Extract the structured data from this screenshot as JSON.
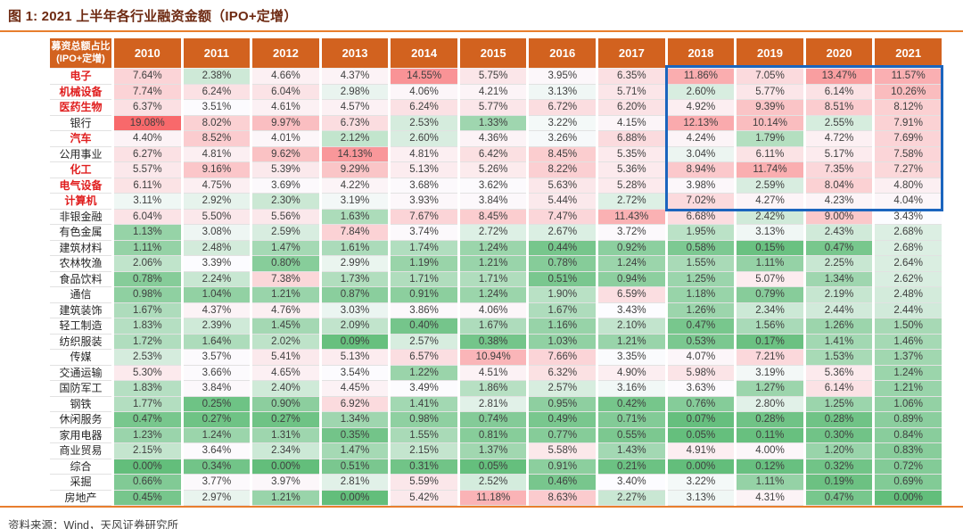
{
  "header": {
    "title": "图 1: 2021 上半年各行业融资金额（IPO+定增）"
  },
  "footer": {
    "source": "资料来源：Wind，天风证券研究所"
  },
  "chart_data": {
    "type": "heatmap",
    "title": "2021 上半年各行业融资金额（IPO+定增）",
    "corner_header": {
      "line1": "募资总额占比",
      "line2": "(IPO+定增)"
    },
    "value_format": "percent",
    "header_bg": "#D2621F",
    "emphasis_color": "#E01E1E",
    "color_scale": {
      "min_value": 0,
      "mid_value": 3.4,
      "max_value": 19.08,
      "min_color": "#63BE7B",
      "mid_color": "#FCFCFF",
      "max_color": "#F8696B"
    },
    "highlight_box": {
      "row_start": 0,
      "row_end": 8,
      "col_start": 8,
      "col_end": 11,
      "border_color": "#1B65BE"
    },
    "columns": [
      "2010",
      "2011",
      "2012",
      "2013",
      "2014",
      "2015",
      "2016",
      "2017",
      "2018",
      "2019",
      "2020",
      "2021"
    ],
    "rows": [
      {
        "label": "电子",
        "emphasis": true,
        "values": [
          7.64,
          2.38,
          4.66,
          4.37,
          14.55,
          5.75,
          3.95,
          6.35,
          11.86,
          7.05,
          13.47,
          11.57
        ]
      },
      {
        "label": "机械设备",
        "emphasis": true,
        "values": [
          7.74,
          6.24,
          6.04,
          2.98,
          4.06,
          4.21,
          3.13,
          5.71,
          2.6,
          5.77,
          6.14,
          10.26
        ]
      },
      {
        "label": "医药生物",
        "emphasis": true,
        "values": [
          6.37,
          3.51,
          4.61,
          4.57,
          6.24,
          5.77,
          6.72,
          6.2,
          4.92,
          9.39,
          8.51,
          8.12
        ]
      },
      {
        "label": "银行",
        "emphasis": false,
        "values": [
          19.08,
          8.02,
          9.97,
          6.73,
          2.53,
          1.33,
          3.22,
          4.15,
          12.13,
          10.14,
          2.55,
          7.91
        ]
      },
      {
        "label": "汽车",
        "emphasis": true,
        "values": [
          4.4,
          8.52,
          4.01,
          2.12,
          2.6,
          4.36,
          3.26,
          6.88,
          4.24,
          1.79,
          4.72,
          7.69
        ]
      },
      {
        "label": "公用事业",
        "emphasis": false,
        "values": [
          6.27,
          4.81,
          9.62,
          14.13,
          4.81,
          6.42,
          8.45,
          5.35,
          3.04,
          6.11,
          5.17,
          7.58
        ]
      },
      {
        "label": "化工",
        "emphasis": true,
        "values": [
          5.57,
          9.16,
          5.39,
          9.29,
          5.13,
          5.26,
          8.22,
          5.36,
          8.94,
          11.74,
          7.35,
          7.27
        ]
      },
      {
        "label": "电气设备",
        "emphasis": true,
        "values": [
          6.11,
          4.75,
          3.69,
          4.22,
          3.68,
          3.62,
          5.63,
          5.28,
          3.98,
          2.59,
          8.04,
          4.8
        ]
      },
      {
        "label": "计算机",
        "emphasis": true,
        "values": [
          3.11,
          2.92,
          2.3,
          3.19,
          3.93,
          3.84,
          5.44,
          2.72,
          7.02,
          4.27,
          4.23,
          4.04
        ]
      },
      {
        "label": "非银金融",
        "emphasis": false,
        "values": [
          6.04,
          5.5,
          5.56,
          1.63,
          7.67,
          8.45,
          7.47,
          11.43,
          6.68,
          2.42,
          9.0,
          3.43
        ]
      },
      {
        "label": "有色金属",
        "emphasis": false,
        "values": [
          1.13,
          3.08,
          2.59,
          7.84,
          3.74,
          2.72,
          2.67,
          3.72,
          1.95,
          3.13,
          2.43,
          2.68
        ]
      },
      {
        "label": "建筑材料",
        "emphasis": false,
        "values": [
          1.11,
          2.48,
          1.47,
          1.61,
          1.74,
          1.24,
          0.44,
          0.92,
          0.58,
          0.15,
          0.47,
          2.68
        ]
      },
      {
        "label": "农林牧渔",
        "emphasis": false,
        "values": [
          2.06,
          3.39,
          0.8,
          2.99,
          1.19,
          1.21,
          0.78,
          1.24,
          1.55,
          1.11,
          2.25,
          2.64
        ]
      },
      {
        "label": "食品饮料",
        "emphasis": false,
        "values": [
          0.78,
          2.24,
          7.38,
          1.73,
          1.71,
          1.71,
          0.51,
          0.94,
          1.25,
          5.07,
          1.34,
          2.62
        ]
      },
      {
        "label": "通信",
        "emphasis": false,
        "values": [
          0.98,
          1.04,
          1.21,
          0.87,
          0.91,
          1.24,
          1.9,
          6.59,
          1.18,
          0.79,
          2.19,
          2.48
        ]
      },
      {
        "label": "建筑装饰",
        "emphasis": false,
        "values": [
          1.67,
          4.37,
          4.76,
          3.03,
          3.86,
          4.06,
          1.67,
          3.43,
          1.26,
          2.34,
          2.44,
          2.44
        ]
      },
      {
        "label": "轻工制造",
        "emphasis": false,
        "values": [
          1.83,
          2.39,
          1.45,
          2.09,
          0.4,
          1.67,
          1.16,
          2.1,
          0.47,
          1.56,
          1.26,
          1.5
        ]
      },
      {
        "label": "纺织服装",
        "emphasis": false,
        "values": [
          1.72,
          1.64,
          2.02,
          0.09,
          2.57,
          0.38,
          1.03,
          1.21,
          0.53,
          0.17,
          1.41,
          1.46
        ]
      },
      {
        "label": "传媒",
        "emphasis": false,
        "values": [
          2.53,
          3.57,
          5.41,
          5.13,
          6.57,
          10.94,
          7.66,
          3.35,
          4.07,
          7.21,
          1.53,
          1.37
        ]
      },
      {
        "label": "交通运输",
        "emphasis": false,
        "values": [
          5.3,
          3.66,
          4.65,
          3.54,
          1.22,
          4.51,
          6.32,
          4.9,
          5.98,
          3.19,
          5.36,
          1.24
        ]
      },
      {
        "label": "国防军工",
        "emphasis": false,
        "values": [
          1.83,
          3.84,
          2.4,
          4.45,
          3.49,
          1.86,
          2.57,
          3.16,
          3.63,
          1.27,
          6.14,
          1.21
        ]
      },
      {
        "label": "钢铁",
        "emphasis": false,
        "values": [
          1.77,
          0.25,
          0.9,
          6.92,
          1.41,
          2.81,
          0.95,
          0.42,
          0.76,
          2.8,
          1.25,
          1.06
        ]
      },
      {
        "label": "休闲服务",
        "emphasis": false,
        "values": [
          0.47,
          0.27,
          0.27,
          1.34,
          0.98,
          0.74,
          0.49,
          0.71,
          0.07,
          0.28,
          0.28,
          0.89
        ]
      },
      {
        "label": "家用电器",
        "emphasis": false,
        "values": [
          1.23,
          1.24,
          1.31,
          0.35,
          1.55,
          0.81,
          0.77,
          0.55,
          0.05,
          0.11,
          0.3,
          0.84
        ]
      },
      {
        "label": "商业贸易",
        "emphasis": false,
        "values": [
          2.15,
          3.64,
          2.34,
          1.47,
          2.15,
          1.37,
          5.58,
          1.43,
          4.91,
          4.0,
          1.2,
          0.83
        ]
      },
      {
        "label": "综合",
        "emphasis": false,
        "values": [
          0.0,
          0.34,
          0.0,
          0.51,
          0.31,
          0.05,
          0.91,
          0.21,
          0.0,
          0.12,
          0.32,
          0.72
        ]
      },
      {
        "label": "采掘",
        "emphasis": false,
        "values": [
          0.66,
          3.77,
          3.97,
          2.81,
          5.59,
          2.52,
          0.46,
          3.4,
          3.22,
          1.11,
          0.19,
          0.69
        ]
      },
      {
        "label": "房地产",
        "emphasis": false,
        "values": [
          0.45,
          2.97,
          1.21,
          0.0,
          5.42,
          11.18,
          8.63,
          2.27,
          3.13,
          4.31,
          0.47,
          0.0
        ]
      }
    ]
  }
}
